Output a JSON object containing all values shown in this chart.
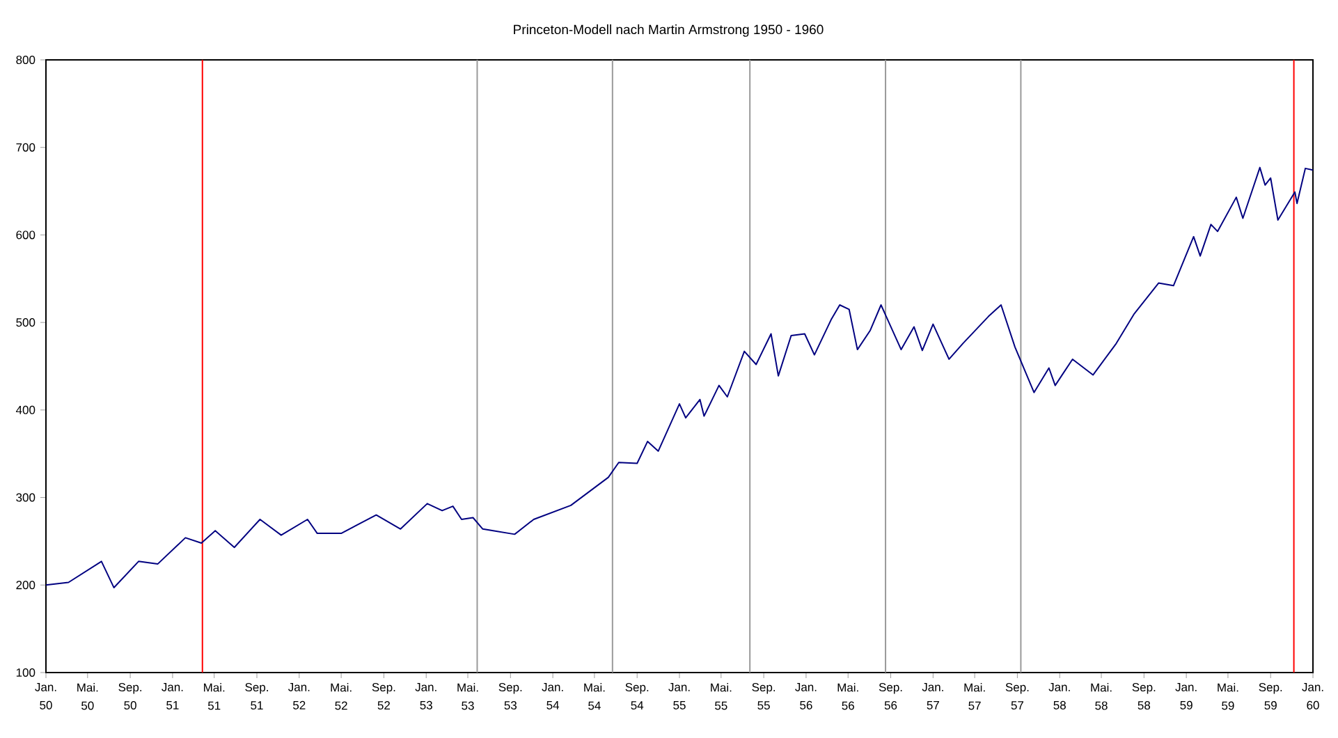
{
  "chart_data": {
    "type": "line",
    "title": "Princeton-Modell nach Martin Armstrong 1950 - 1960",
    "xlim": [
      "1950-01",
      "1960-01"
    ],
    "ylim": [
      100,
      800
    ],
    "yticks": [
      100,
      200,
      300,
      400,
      500,
      600,
      700,
      800
    ],
    "xticks": [
      {
        "value": "1950-01",
        "label": "Jan. 50"
      },
      {
        "value": "1950-05",
        "label": "Mai. 50"
      },
      {
        "value": "1950-09",
        "label": "Sep. 50"
      },
      {
        "value": "1951-01",
        "label": "Jan. 51"
      },
      {
        "value": "1951-05",
        "label": "Mai. 51"
      },
      {
        "value": "1951-09",
        "label": "Sep. 51"
      },
      {
        "value": "1952-01",
        "label": "Jan. 52"
      },
      {
        "value": "1952-05",
        "label": "Mai. 52"
      },
      {
        "value": "1952-09",
        "label": "Sep. 52"
      },
      {
        "value": "1953-01",
        "label": "Jan. 53"
      },
      {
        "value": "1953-05",
        "label": "Mai. 53"
      },
      {
        "value": "1953-09",
        "label": "Sep. 53"
      },
      {
        "value": "1954-01",
        "label": "Jan. 54"
      },
      {
        "value": "1954-05",
        "label": "Mai. 54"
      },
      {
        "value": "1954-09",
        "label": "Sep. 54"
      },
      {
        "value": "1955-01",
        "label": "Jan. 55"
      },
      {
        "value": "1955-05",
        "label": "Mai. 55"
      },
      {
        "value": "1955-09",
        "label": "Sep. 55"
      },
      {
        "value": "1956-01",
        "label": "Jan. 56"
      },
      {
        "value": "1956-05",
        "label": "Mai. 56"
      },
      {
        "value": "1956-09",
        "label": "Sep. 56"
      },
      {
        "value": "1957-01",
        "label": "Jan. 57"
      },
      {
        "value": "1957-05",
        "label": "Mai. 57"
      },
      {
        "value": "1957-09",
        "label": "Sep. 57"
      },
      {
        "value": "1958-01",
        "label": "Jan. 58"
      },
      {
        "value": "1958-05",
        "label": "Mai. 58"
      },
      {
        "value": "1958-09",
        "label": "Sep. 58"
      },
      {
        "value": "1959-01",
        "label": "Jan. 59"
      },
      {
        "value": "1959-05",
        "label": "Mai. 59"
      },
      {
        "value": "1959-09",
        "label": "Sep. 59"
      },
      {
        "value": "1960-01",
        "label": "Jan. 60"
      }
    ],
    "grid": false,
    "ref_lines": [
      {
        "axis": "x",
        "value": "1951-03-28",
        "color": "#ff0000"
      },
      {
        "axis": "x",
        "value": "1953-05-28",
        "color": "#999999"
      },
      {
        "axis": "x",
        "value": "1954-06-22",
        "color": "#999999"
      },
      {
        "axis": "x",
        "value": "1955-07-23",
        "color": "#999999"
      },
      {
        "axis": "x",
        "value": "1956-08-17",
        "color": "#999999"
      },
      {
        "axis": "x",
        "value": "1957-09-11",
        "color": "#999999"
      },
      {
        "axis": "x",
        "value": "1959-11-07",
        "color": "#ff0000"
      }
    ],
    "series": [
      {
        "color": "#000080",
        "x": [
          "1950-01-01",
          "1950-03-07",
          "1950-06-10",
          "1950-07-16",
          "1950-09-25",
          "1950-11-19",
          "1951-02-07",
          "1951-03-25",
          "1951-05-04",
          "1951-06-28",
          "1951-09-10",
          "1951-11-10",
          "1952-01-25",
          "1952-02-22",
          "1952-05-01",
          "1952-08-10",
          "1952-10-19",
          "1953-01-04",
          "1953-02-16",
          "1953-03-19",
          "1953-04-13",
          "1953-05-16",
          "1953-06-13",
          "1953-09-13",
          "1953-11-07",
          "1954-02-22",
          "1954-06-10",
          "1954-07-10",
          "1954-09-01",
          "1954-10-01",
          "1954-11-01",
          "1955-01-01",
          "1955-01-19",
          "1955-03-01",
          "1955-03-13",
          "1955-04-25",
          "1955-05-19",
          "1955-07-07",
          "1955-08-10",
          "1955-09-22",
          "1955-10-13",
          "1955-11-19",
          "1955-12-28",
          "1956-01-25",
          "1956-03-13",
          "1956-04-07",
          "1956-05-04",
          "1956-05-28",
          "1956-07-04",
          "1956-08-04",
          "1956-10-01",
          "1956-11-07",
          "1956-12-01",
          "1957-01-01",
          "1957-02-16",
          "1957-03-28",
          "1957-06-10",
          "1957-07-16",
          "1957-08-25",
          "1957-10-19",
          "1957-12-01",
          "1957-12-19",
          "1958-02-07",
          "1958-04-07",
          "1958-06-13",
          "1958-08-04",
          "1958-10-13",
          "1958-11-25",
          "1959-01-22",
          "1959-02-10",
          "1959-03-13",
          "1959-04-01",
          "1959-05-25",
          "1959-06-13",
          "1959-08-01",
          "1959-08-16",
          "1959-09-01",
          "1959-09-22",
          "1959-11-10",
          "1959-11-16",
          "1959-12-10",
          "1960-01-01"
        ],
        "values": [
          200,
          203,
          227,
          197,
          227,
          224,
          254,
          248,
          262,
          243,
          275,
          257,
          275,
          259,
          259,
          280,
          264,
          293,
          285,
          290,
          275,
          277,
          264,
          258,
          275,
          291,
          323,
          340,
          339,
          364,
          353,
          407,
          391,
          412,
          393,
          428,
          415,
          467,
          452,
          487,
          439,
          485,
          487,
          463,
          503,
          520,
          515,
          469,
          491,
          520,
          469,
          495,
          468,
          498,
          458,
          476,
          507,
          520,
          472,
          420,
          448,
          428,
          458,
          440,
          476,
          510,
          545,
          542,
          598,
          576,
          612,
          604,
          643,
          619,
          677,
          657,
          665,
          617,
          649,
          636,
          676,
          674
        ]
      }
    ]
  }
}
